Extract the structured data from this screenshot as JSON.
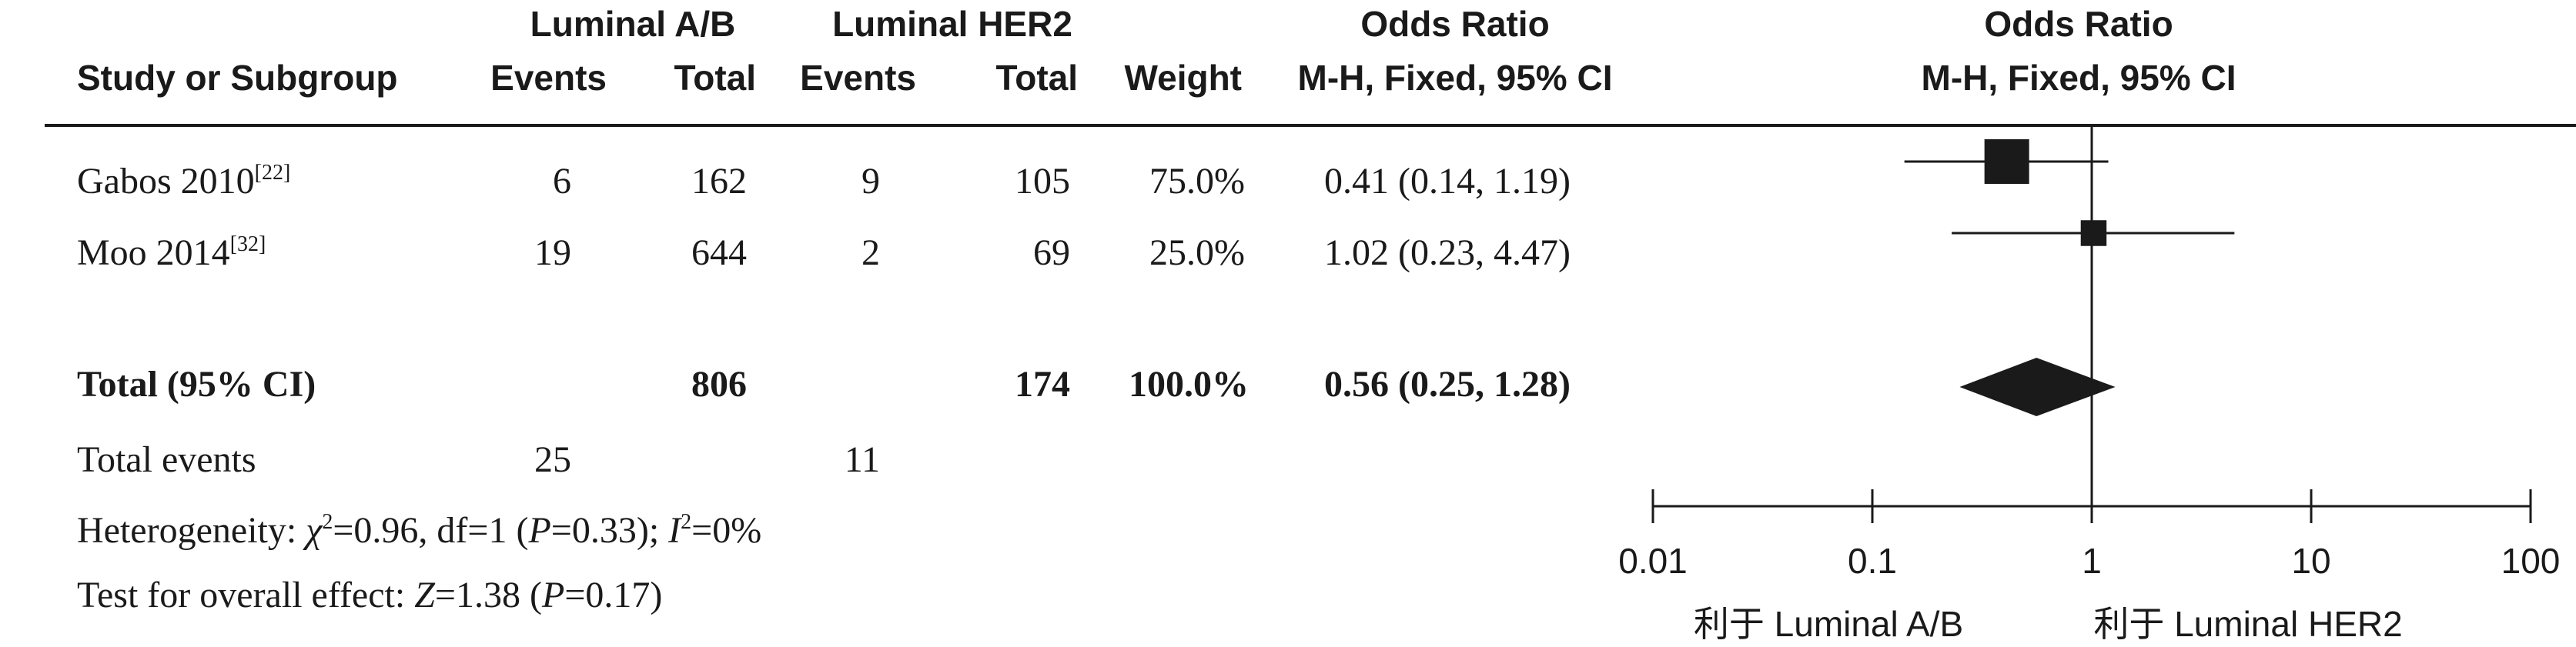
{
  "headers": {
    "study": "Study or Subgroup",
    "group1": "Luminal A/B",
    "group2": "Luminal HER2",
    "events": "Events",
    "total": "Total",
    "weight": "Weight",
    "or_title": "Odds Ratio",
    "or_method": "M-H, Fixed, 95% CI",
    "plot_title": "Odds Ratio",
    "plot_method": "M-H, Fixed, 95% CI"
  },
  "studies": [
    {
      "name": "Gabos 2010",
      "ref": "[22]",
      "e1": "6",
      "t1": "162",
      "e2": "9",
      "t2": "105",
      "weight": "75.0%",
      "ci_text": "0.41 (0.14, 1.19)"
    },
    {
      "name": "Moo 2014",
      "ref": "[32]",
      "e1": "19",
      "t1": "644",
      "e2": "2",
      "t2": "69",
      "weight": "25.0%",
      "ci_text": "1.02 (0.23, 4.47)"
    }
  ],
  "total": {
    "label": "Total (95% CI)",
    "t1": "806",
    "t2": "174",
    "weight": "100.0%",
    "ci_text": "0.56 (0.25, 1.28)"
  },
  "total_events": {
    "label": "Total events",
    "e1": "25",
    "e2": "11"
  },
  "heterogeneity": {
    "prefix": "Heterogeneity: ",
    "chi_sym": "χ",
    "chi_rest": "=0.96, df=1 (",
    "p_sym": "P",
    "p_rest": "=0.33); ",
    "i_sym": "I",
    "i_rest": "=0%"
  },
  "overall": {
    "prefix": "Test for overall effect: ",
    "z_sym": "Z",
    "z_rest": "=1.38 (",
    "p_sym": "P",
    "p_rest": "=0.17)"
  },
  "axis": {
    "left_label": "利于 Luminal A/B",
    "right_label": "利于 Luminal HER2"
  },
  "chart_data": {
    "type": "forest",
    "x_scale": "log",
    "xlim": [
      0.01,
      100
    ],
    "x_ticks": [
      0.01,
      0.1,
      1,
      10,
      100
    ],
    "x_tick_labels": [
      "0.01",
      "0.1",
      "1",
      "10",
      "100"
    ],
    "reference_line": 1,
    "studies": [
      {
        "name": "Gabos 2010",
        "or": 0.41,
        "lower": 0.14,
        "upper": 1.19,
        "weight": 75.0
      },
      {
        "name": "Moo 2014",
        "or": 1.02,
        "lower": 0.23,
        "upper": 4.47,
        "weight": 25.0
      }
    ],
    "pooled": {
      "name": "Total (95% CI)",
      "or": 0.56,
      "lower": 0.25,
      "upper": 1.28
    },
    "colors": {
      "ink": "#1a1a1a"
    }
  }
}
